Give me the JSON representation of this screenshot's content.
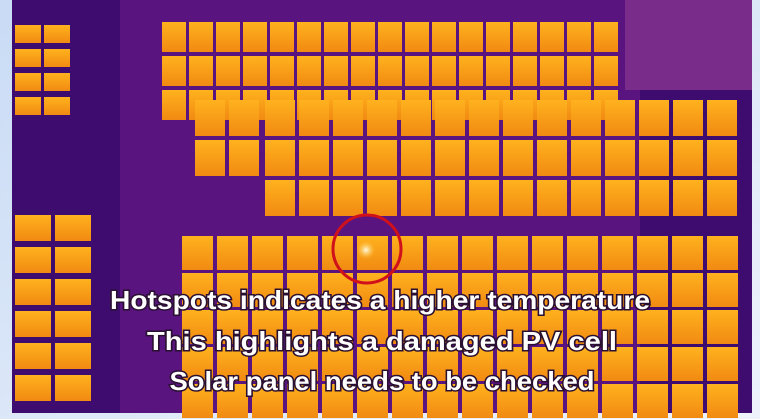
{
  "caption": {
    "lines": [
      "Hotspots indicates a higher temperature",
      "This highlights a damaged PV cell",
      "Solar panel needs to be checked"
    ]
  }
}
